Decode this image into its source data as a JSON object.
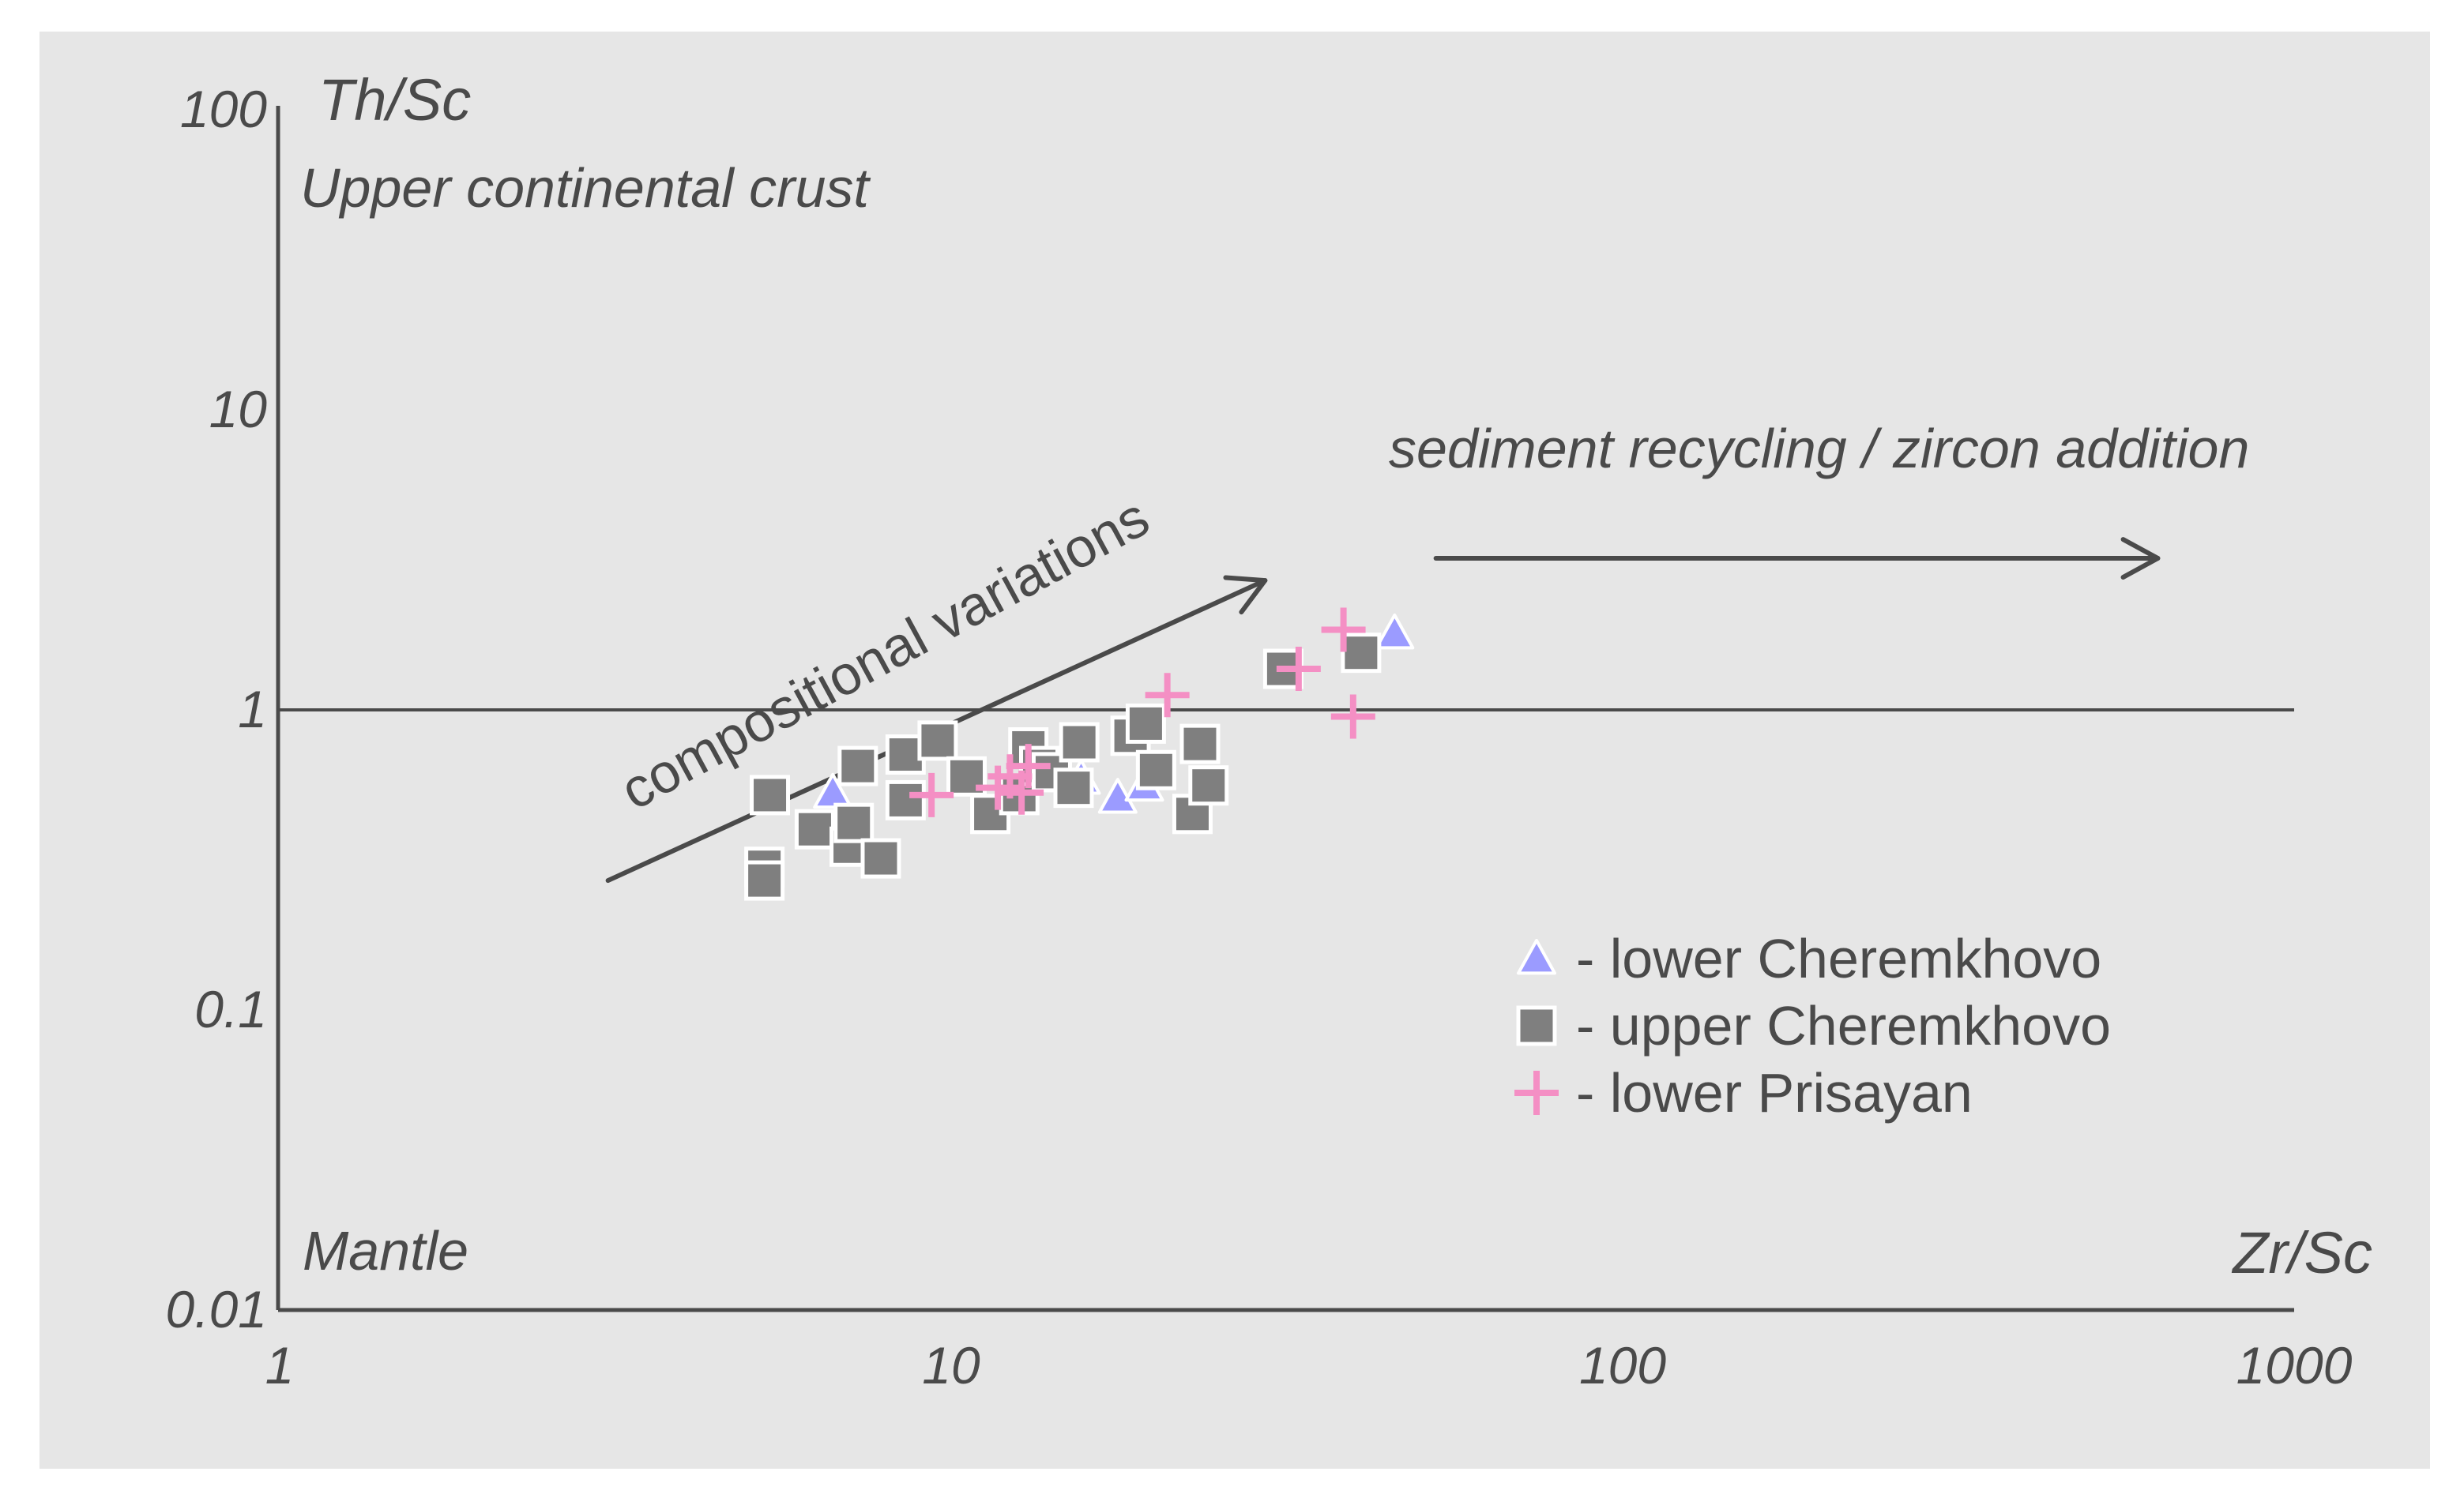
{
  "chart_data": {
    "type": "scatter",
    "title": "",
    "xlabel": "Zr/Sc",
    "ylabel": "Th/Sc",
    "xscale": "log",
    "yscale": "log",
    "xlim": [
      1,
      1000
    ],
    "ylim": [
      0.01,
      100
    ],
    "x_ticks": [
      1,
      10,
      100,
      1000
    ],
    "x_tick_labels": [
      "1",
      "10",
      "100",
      "1000"
    ],
    "y_ticks": [
      0.01,
      0.1,
      1,
      10,
      100
    ],
    "y_tick_labels": [
      "0.01",
      "0.1",
      "1",
      "10",
      "100"
    ],
    "reference_line": {
      "y": 1
    },
    "annotations": {
      "upper": "Upper continental crust",
      "lower": "Mantle",
      "trend1": "compositional variations",
      "trend2": "sediment recycling / zircon addition"
    },
    "arrows": [
      {
        "name": "compositional-variations",
        "from": [
          3.1,
          0.27
        ],
        "to": [
          29.5,
          2.7
        ]
      },
      {
        "name": "sediment-recycling",
        "from": [
          53,
          3.2
        ],
        "to": [
          630,
          3.2
        ]
      }
    ],
    "legend": {
      "position": "bottom-right"
    },
    "series": [
      {
        "name": "- lower Cheremkhovo",
        "marker": "triangle",
        "color": "#9b9bff",
        "points": [
          [
            6.7,
            0.53
          ],
          [
            15.7,
            0.59
          ],
          [
            17.8,
            0.51
          ],
          [
            19.5,
            0.56
          ],
          [
            46,
            1.8
          ]
        ]
      },
      {
        "name": "- upper Cheremkhovo",
        "marker": "square",
        "color": "#7f7f7f",
        "points": [
          [
            5.4,
            0.52
          ],
          [
            5.3,
            0.3
          ],
          [
            5.3,
            0.27
          ],
          [
            6.3,
            0.4
          ],
          [
            7.1,
            0.35
          ],
          [
            7.2,
            0.42
          ],
          [
            7.3,
            0.65
          ],
          [
            7.9,
            0.32
          ],
          [
            8.6,
            0.5
          ],
          [
            8.6,
            0.71
          ],
          [
            9.6,
            0.79
          ],
          [
            10.6,
            0.6
          ],
          [
            11.5,
            0.45
          ],
          [
            12.7,
            0.52
          ],
          [
            13.1,
            0.75
          ],
          [
            13.6,
            0.65
          ],
          [
            14.2,
            0.62
          ],
          [
            15.3,
            0.55
          ],
          [
            15.6,
            0.78
          ],
          [
            18.6,
            0.82
          ],
          [
            19.6,
            0.9
          ],
          [
            20.3,
            0.63
          ],
          [
            23.0,
            0.45
          ],
          [
            23.6,
            0.77
          ],
          [
            24.3,
            0.56
          ],
          [
            31.4,
            1.37
          ],
          [
            41.0,
            1.55
          ]
        ]
      },
      {
        "name": "- lower Prisayan",
        "marker": "plus",
        "color": "#f48fc4",
        "points": [
          [
            9.4,
            0.52
          ],
          [
            11.8,
            0.55
          ],
          [
            12.3,
            0.6
          ],
          [
            13.1,
            0.65
          ],
          [
            12.8,
            0.53
          ],
          [
            21.1,
            1.12
          ],
          [
            33.1,
            1.37
          ],
          [
            38.6,
            1.85
          ],
          [
            39.9,
            0.95
          ]
        ]
      }
    ]
  }
}
